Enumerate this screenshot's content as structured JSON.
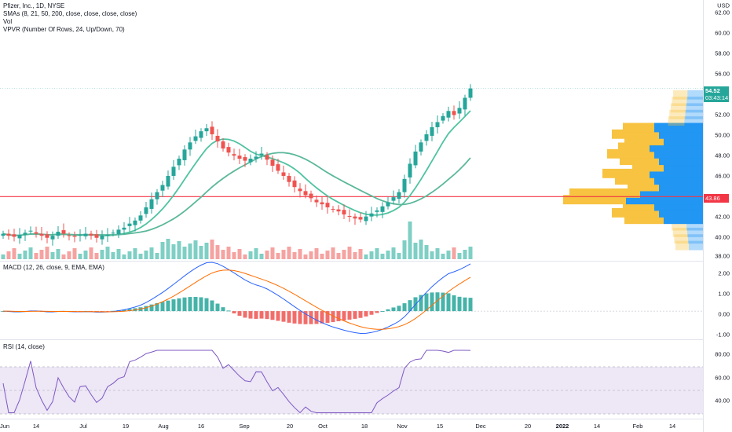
{
  "header": {
    "title": "Pfizer, Inc., 1D, NYSE",
    "indicators": [
      "SMAs (8, 21, 50, 200, close, close, close, close)",
      "Vol",
      "VPVR (Number Of Rows, 24, Up/Down, 70)"
    ],
    "currency": "USD"
  },
  "macd_pane": {
    "title": "MACD (12, 26, close, 9, EMA, EMA)"
  },
  "rsi_pane": {
    "title": "RSI (14, close)"
  },
  "price_axis": {
    "labels": [
      "62.00",
      "60.00",
      "58.00",
      "56.00",
      "52.00",
      "50.00",
      "48.00",
      "46.00",
      "42.00",
      "40.00",
      "38.00"
    ]
  },
  "macd_axis": {
    "labels": [
      "2.00",
      "1.00",
      "0.00",
      "-1.00"
    ]
  },
  "rsi_axis": {
    "labels": [
      "80.00",
      "60.00",
      "40.00"
    ]
  },
  "badges": {
    "last_price": "54.52",
    "countdown": "03:43:14",
    "line_price": "43.86"
  },
  "time_axis": [
    {
      "label": "Jun",
      "bold": false
    },
    {
      "label": "14",
      "bold": false
    },
    {
      "label": "Jul",
      "bold": false
    },
    {
      "label": "19",
      "bold": false
    },
    {
      "label": "Aug",
      "bold": false
    },
    {
      "label": "16",
      "bold": false
    },
    {
      "label": "Sep",
      "bold": false
    },
    {
      "label": "20",
      "bold": false
    },
    {
      "label": "Oct",
      "bold": false
    },
    {
      "label": "18",
      "bold": false
    },
    {
      "label": "Nov",
      "bold": false
    },
    {
      "label": "15",
      "bold": false
    },
    {
      "label": "Dec",
      "bold": false
    },
    {
      "label": "20",
      "bold": false
    },
    {
      "label": "2022",
      "bold": true
    },
    {
      "label": "14",
      "bold": false
    },
    {
      "label": "Feb",
      "bold": false
    },
    {
      "label": "14",
      "bold": false
    }
  ],
  "colors": {
    "up": "#26a69a",
    "down": "#ef5350",
    "sma_short": "#4fc3a1",
    "sma_long": "#5ab89a",
    "red_line": "#f23645",
    "macd": "#2962ff",
    "signal": "#ff6d00",
    "rsi": "#7e57c2",
    "vpvr_up": "#2196f3",
    "vpvr_down": "#f7c341",
    "rsi_band": "#ede7f6"
  },
  "chart_data": {
    "type": "candlestick",
    "price_range": [
      38,
      62
    ],
    "horizontal_line": 43.86,
    "close_series": [
      40.2,
      40.0,
      39.9,
      40.1,
      40.3,
      40.5,
      40.2,
      40.0,
      39.8,
      40.0,
      40.4,
      40.2,
      40.0,
      39.9,
      40.1,
      40.2,
      40.0,
      39.8,
      40.0,
      40.1,
      40.3,
      40.6,
      40.8,
      41.2,
      41.5,
      42.0,
      42.8,
      43.6,
      44.3,
      45.0,
      45.9,
      46.8,
      47.6,
      48.5,
      49.2,
      49.8,
      50.3,
      50.6,
      50.0,
      49.3,
      48.6,
      48.2,
      47.9,
      47.6,
      47.4,
      47.6,
      47.8,
      48.1,
      47.5,
      46.9,
      46.4,
      45.9,
      45.3,
      44.8,
      44.4,
      44.0,
      43.7,
      43.3,
      43.1,
      42.8,
      42.6,
      42.4,
      42.1,
      41.9,
      41.7,
      41.6,
      41.9,
      42.2,
      42.5,
      42.9,
      43.3,
      43.8,
      44.3,
      45.6,
      47.1,
      48.3,
      49.2,
      50.0,
      50.7,
      51.2,
      51.8,
      52.3,
      51.9,
      52.6,
      53.6,
      54.52
    ],
    "macd_range": [
      -1.4,
      2.4
    ],
    "rsi_range": [
      28,
      88
    ],
    "x_ticks": [
      "Jun",
      "14",
      "Jul",
      "19",
      "Aug",
      "16",
      "Sep",
      "20",
      "Oct",
      "18",
      "Nov",
      "15",
      "Dec",
      "20",
      "2022",
      "14",
      "Feb",
      "14"
    ]
  }
}
